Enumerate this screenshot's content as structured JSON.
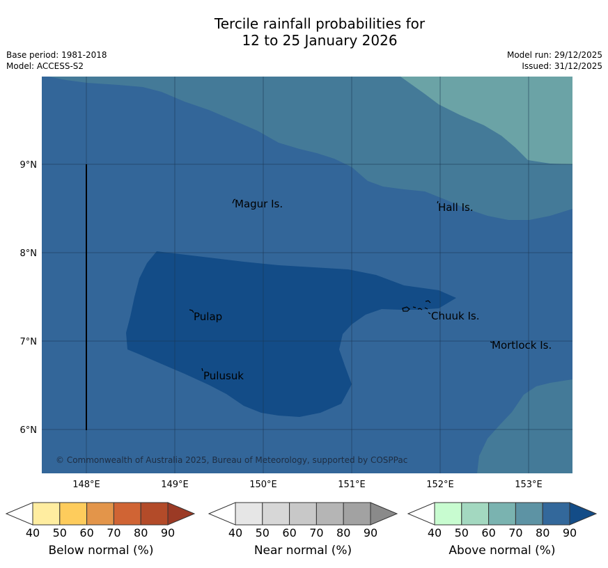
{
  "header": {
    "title_line1": "Tercile rainfall probabilities for",
    "title_line2": "12 to 25 January 2026",
    "base_period": "Base period: 1981-2018",
    "model": "Model: ACCESS-S2",
    "model_run": "Model run: 29/12/2025",
    "issued": "Issued: 31/12/2025"
  },
  "map": {
    "lon_ticks": [
      "148°E",
      "149°E",
      "150°E",
      "151°E",
      "152°E",
      "153°E"
    ],
    "lat_ticks": [
      "9°N",
      "8°N",
      "7°N",
      "6°N"
    ],
    "places": [
      {
        "name": "Magur Is."
      },
      {
        "name": "Hall Is."
      },
      {
        "name": "Pulap"
      },
      {
        "name": "Chuuk Is."
      },
      {
        "name": "Mortlock Is."
      },
      {
        "name": "Pulusuk"
      }
    ],
    "copyright": "© Commonwealth of Australia 2025, Bureau of Meteorology, supported by COSPPac",
    "zone_colors": {
      "above_60_70": "#6ba3a6",
      "above_70_80": "#447a98",
      "above_80_90": "#336699",
      "above_90_plus": "#134c87"
    }
  },
  "colorbars": [
    {
      "label": "Below normal (%)",
      "ticks": [
        "40",
        "50",
        "60",
        "70",
        "80",
        "90"
      ],
      "colors": [
        "#ffffff",
        "#ffeda0",
        "#fecc5c",
        "#e3954a",
        "#d06434",
        "#b34b29",
        "#9b3a25"
      ]
    },
    {
      "label": "Near normal (%)",
      "ticks": [
        "40",
        "50",
        "60",
        "70",
        "80",
        "90"
      ],
      "colors": [
        "#ffffff",
        "#e6e6e6",
        "#d7d7d7",
        "#c8c8c8",
        "#b5b5b5",
        "#a2a2a2",
        "#8a8a8a"
      ]
    },
    {
      "label": "Above normal (%)",
      "ticks": [
        "40",
        "50",
        "60",
        "70",
        "80",
        "90"
      ],
      "colors": [
        "#ffffff",
        "#c8fcd0",
        "#a3d8c0",
        "#7ab3b0",
        "#5d93a4",
        "#33689b",
        "#134c87"
      ]
    }
  ]
}
